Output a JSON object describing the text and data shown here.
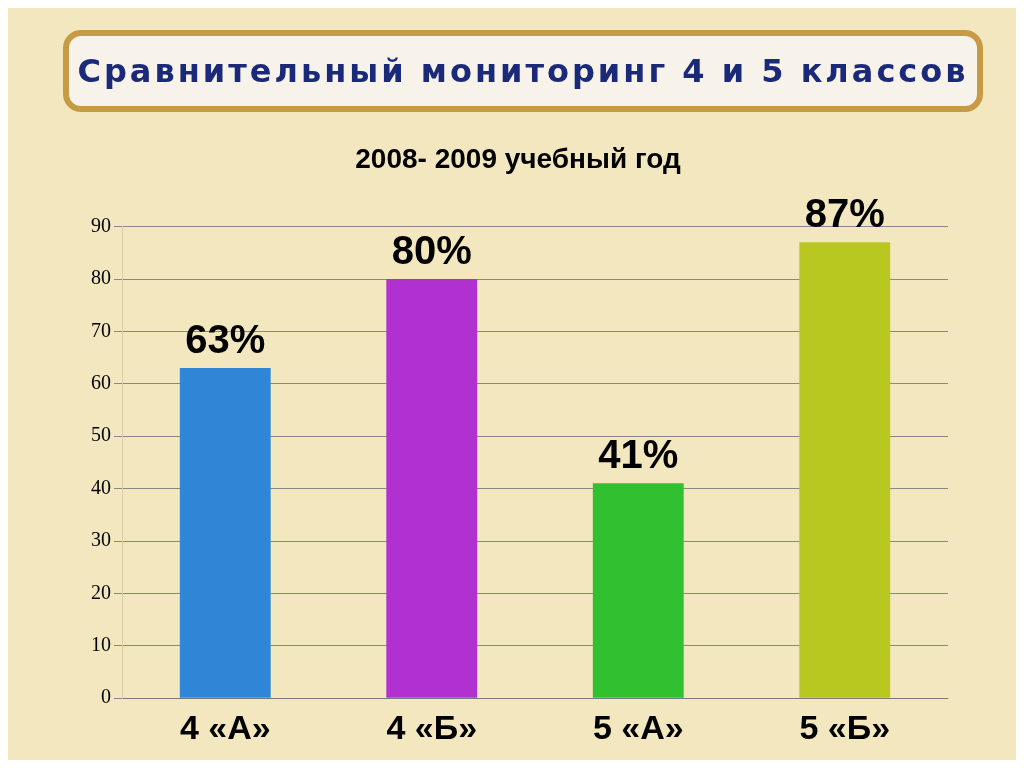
{
  "chart_data": {
    "type": "bar",
    "title": "Сравнительный мониторинг 4 и 5 классов",
    "subtitle": "2008- 2009 учебный год",
    "categories": [
      "4 «А»",
      "4 «Б»",
      "5 «А»",
      "5 «Б»"
    ],
    "values": [
      63,
      80,
      41,
      87
    ],
    "colors": [
      "#2f86d6",
      "#b030d0",
      "#30c030",
      "#b8c820"
    ],
    "value_labels": [
      "63%",
      "80%",
      "41%",
      "87%"
    ],
    "ylim": [
      0,
      90
    ],
    "yticks": [
      0,
      10,
      20,
      30,
      40,
      50,
      60,
      70,
      80,
      90
    ],
    "grid": "y",
    "legend": false
  }
}
